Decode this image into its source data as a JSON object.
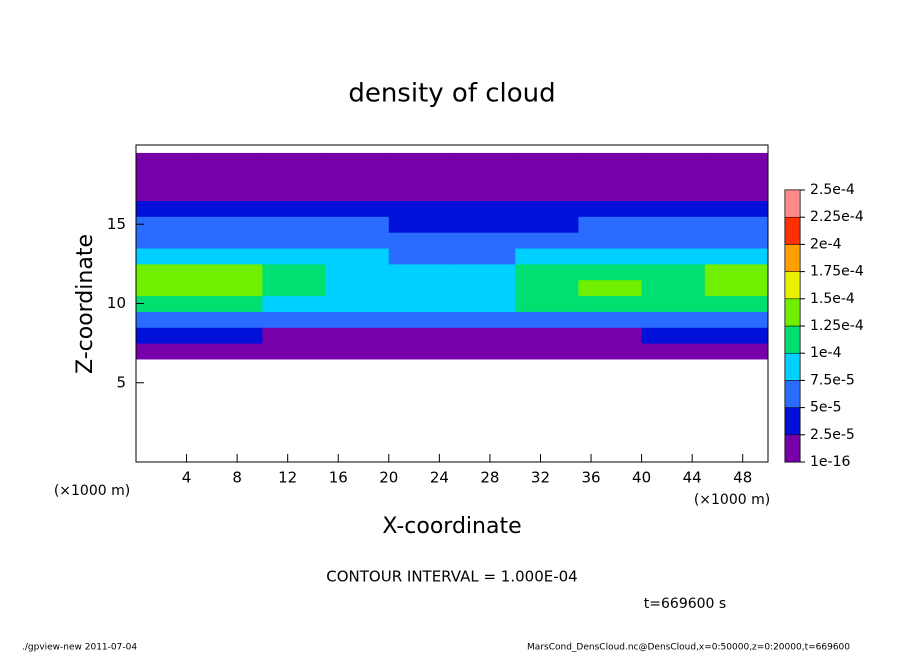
{
  "chart_data": {
    "type": "heatmap",
    "title": "density of cloud",
    "x_label": "X-coordinate",
    "y_label": "Z-coordinate",
    "x_unit_labels": [
      "(×1000 m)",
      "(×1000 m)"
    ],
    "contour_note": "CONTOUR INTERVAL = 1.000E-04",
    "time_label": "t=669600 s",
    "footer_left": "./gpview-new  2011-07-04",
    "footer_right": "MarsCond_DensCloud.nc@DensCloud,x=0:50000,z=0:20000,t=669600",
    "xlim": [
      0,
      50
    ],
    "ylim": [
      0,
      20
    ],
    "xticks": [
      4,
      8,
      12,
      16,
      20,
      24,
      28,
      32,
      36,
      40,
      44,
      48
    ],
    "yticks": [
      5,
      10,
      15
    ],
    "x": [
      2.5,
      7.5,
      12.5,
      17.5,
      22.5,
      27.5,
      32.5,
      37.5,
      42.5,
      47.5
    ],
    "z": [
      7,
      8,
      9,
      10,
      11,
      12,
      13,
      14,
      15,
      16,
      17,
      18,
      19
    ],
    "values": [
      [
        8e-06,
        8e-06,
        1e-05,
        1e-05,
        8e-06,
        8e-06,
        1e-05,
        1e-05,
        1e-05,
        8e-06
      ],
      [
        3e-05,
        3e-05,
        2e-05,
        2e-05,
        2e-05,
        2e-05,
        2e-05,
        2e-05,
        3e-05,
        3e-05
      ],
      [
        6e-05,
        6e-05,
        5.5e-05,
        5.5e-05,
        6e-05,
        6e-05,
        6e-05,
        6e-05,
        6e-05,
        6e-05
      ],
      [
        0.000105,
        0.00011,
        9e-05,
        8.5e-05,
        8.5e-05,
        9e-05,
        0.000105,
        0.00011,
        0.000105,
        0.00011
      ],
      [
        0.00013,
        0.000135,
        0.00011,
        9e-05,
        9e-05,
        8.5e-05,
        0.00012,
        0.000125,
        0.00012,
        0.00013
      ],
      [
        0.000125,
        0.00013,
        0.000105,
        8.5e-05,
        8e-05,
        8e-05,
        0.000105,
        0.00011,
        0.00011,
        0.000125
      ],
      [
        9e-05,
        9e-05,
        8e-05,
        7.5e-05,
        7e-05,
        7e-05,
        7.5e-05,
        8e-05,
        8e-05,
        9e-05
      ],
      [
        7e-05,
        7e-05,
        6.5e-05,
        6e-05,
        5.5e-05,
        5e-05,
        5.5e-05,
        6.5e-05,
        6.5e-05,
        7e-05
      ],
      [
        6e-05,
        6e-05,
        5.5e-05,
        5e-05,
        4e-05,
        4e-05,
        4e-05,
        5e-05,
        5.5e-05,
        6e-05
      ],
      [
        4e-05,
        4e-05,
        4e-05,
        3e-05,
        2.5e-05,
        2.5e-05,
        3e-05,
        3.5e-05,
        4e-05,
        4e-05
      ],
      [
        2e-05,
        2e-05,
        1.5e-05,
        1e-05,
        1e-05,
        1e-05,
        1e-05,
        1.5e-05,
        2e-05,
        2e-05
      ],
      [
        1e-05,
        1e-05,
        1e-05,
        1e-05,
        1e-05,
        1e-05,
        1e-05,
        1e-05,
        1e-05,
        1e-05
      ],
      [
        1e-05,
        1e-05,
        5e-06,
        5e-06,
        5e-06,
        5e-06,
        5e-06,
        5e-06,
        1e-05,
        1e-05
      ]
    ],
    "levels": [
      {
        "value": 1e-16,
        "label": "1e-16"
      },
      {
        "value": 2.5e-05,
        "label": "2.5e-5"
      },
      {
        "value": 5e-05,
        "label": "5e-5"
      },
      {
        "value": 7.5e-05,
        "label": "7.5e-5"
      },
      {
        "value": 0.0001,
        "label": "1e-4"
      },
      {
        "value": 0.000125,
        "label": "1.25e-4"
      },
      {
        "value": 0.00015,
        "label": "1.5e-4"
      },
      {
        "value": 0.000175,
        "label": "1.75e-4"
      },
      {
        "value": 0.0002,
        "label": "2e-4"
      },
      {
        "value": 0.000225,
        "label": "2.25e-4"
      },
      {
        "value": 0.00025,
        "label": "2.5e-4"
      }
    ],
    "colors": [
      "#7800a8",
      "#0010d8",
      "#2a6cff",
      "#00d0ff",
      "#00e070",
      "#70f000",
      "#e8f000",
      "#ffa000",
      "#ff3000",
      "#ff8a8a"
    ]
  }
}
